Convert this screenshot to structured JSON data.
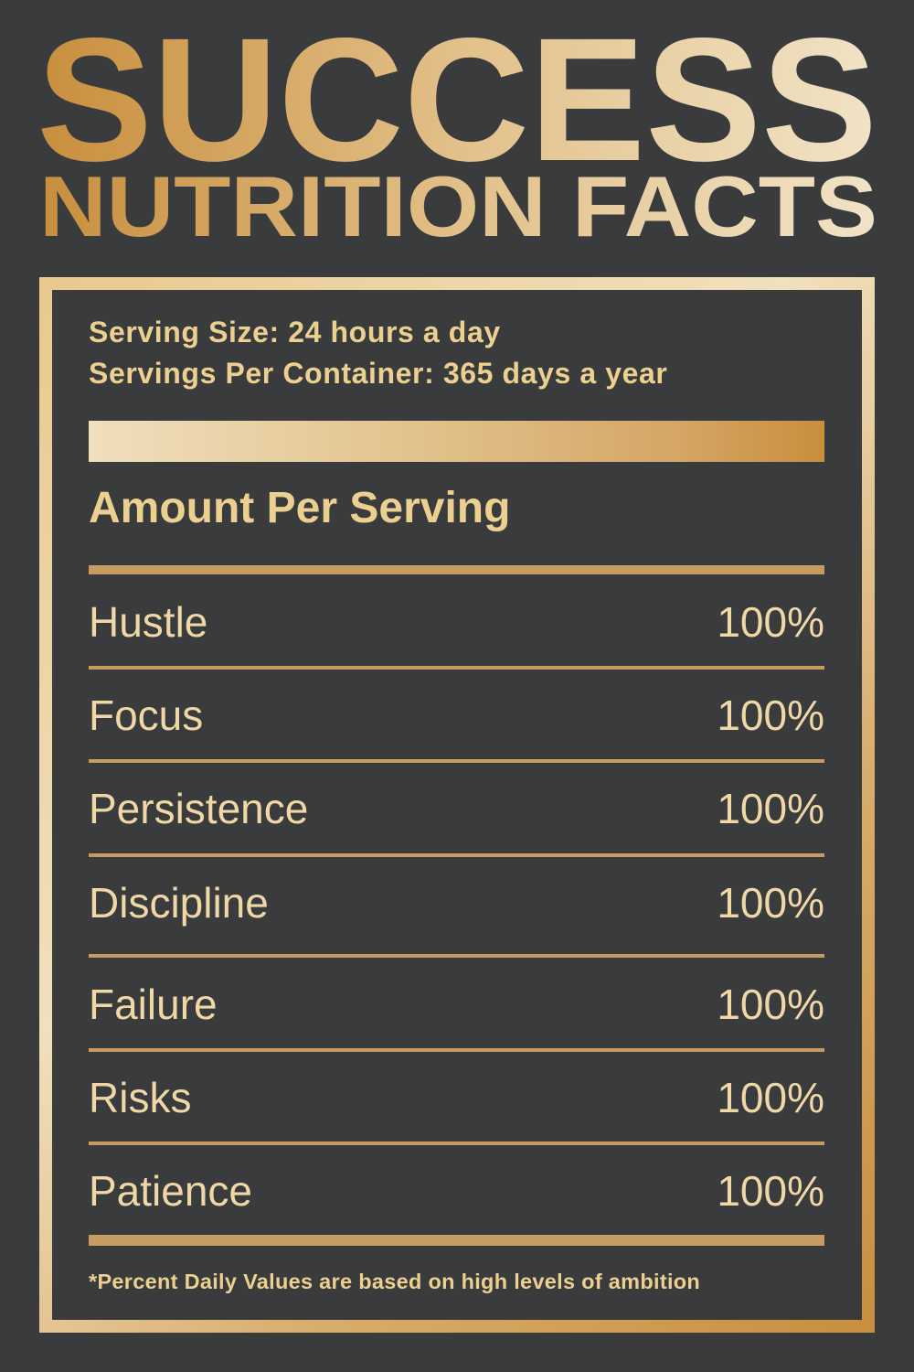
{
  "title": {
    "line1": "SUCCESS",
    "line2": "NUTRITION FACTS"
  },
  "label": {
    "serving_size": "Serving Size: 24 hours a day",
    "servings_per_container": "Servings Per Container: 365 days a year",
    "amount_heading": "Amount Per Serving",
    "rows": [
      {
        "name": "Hustle",
        "value": "100%"
      },
      {
        "name": "Focus",
        "value": "100%"
      },
      {
        "name": "Persistence",
        "value": "100%"
      },
      {
        "name": "Discipline",
        "value": "100%"
      },
      {
        "name": "Failure",
        "value": "100%"
      },
      {
        "name": "Risks",
        "value": "100%"
      },
      {
        "name": "Patience",
        "value": "100%"
      }
    ],
    "footnote": "*Percent Daily Values are based on high levels of ambition"
  },
  "colors": {
    "background": "#3a3b3d",
    "gold_dark": "#c88e3d",
    "gold_light": "#f0dfbd"
  }
}
